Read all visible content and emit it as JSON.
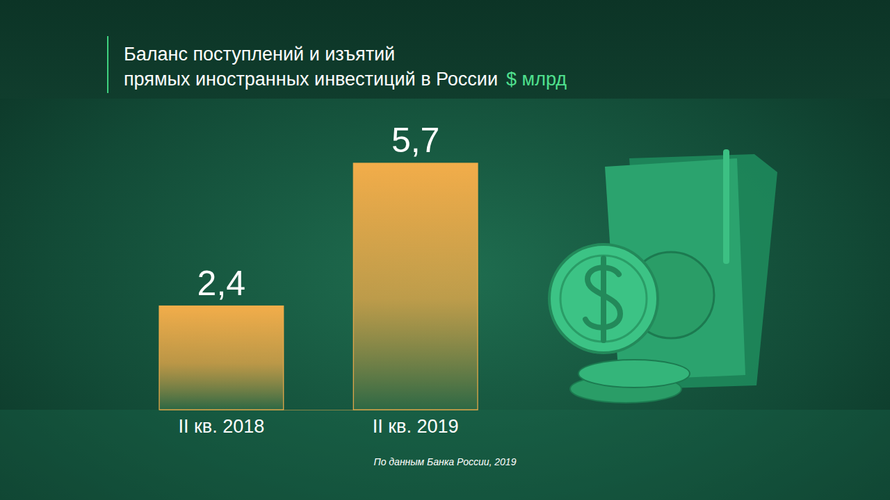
{
  "chart_data": {
    "type": "bar",
    "title": "Баланс поступлений и изъятий\nпрямых иностранных инвестиций в России",
    "subtitle": "$ млрд",
    "categories": [
      "II кв. 2018",
      "II кв. 2019"
    ],
    "values": [
      2.4,
      5.7
    ],
    "value_labels": [
      "2,4",
      "5,7"
    ],
    "color": "#f2ad4a",
    "data_labels": true,
    "tick_labels": "x",
    "grid": false,
    "annotations": [
      "По данным Банка России, 2019"
    ]
  }
}
